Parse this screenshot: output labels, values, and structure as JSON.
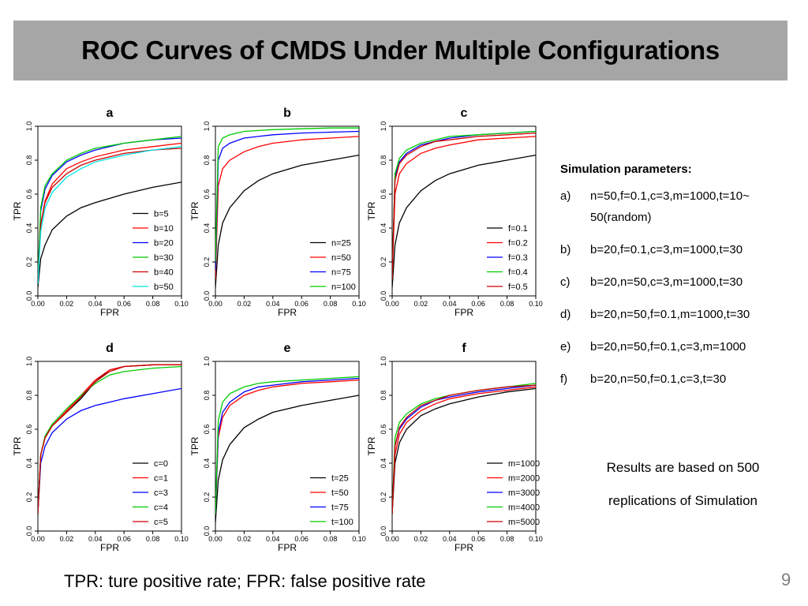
{
  "slide": {
    "title": "ROC Curves of CMDS Under Multiple Configurations",
    "footnote": "TPR: ture positive rate;  FPR: false positive rate",
    "page_number": "9"
  },
  "sidebar": {
    "heading": "Simulation parameters:",
    "params": [
      {
        "label": "a)",
        "text": "n=50,f=0.1,c=3,m=1000,t=10~ 50(random)"
      },
      {
        "label": "b)",
        "text": "b=20,f=0.1,c=3,m=1000,t=30"
      },
      {
        "label": "c)",
        "text": "b=20,n=50,c=3,m=1000,t=30"
      },
      {
        "label": "d)",
        "text": "b=20,n=50,f=0.1,m=1000,t=30"
      },
      {
        "label": "e)",
        "text": "b=20,n=50,f=0.1,c=3,m=1000"
      },
      {
        "label": "f)",
        "text": "b=20,n=50,f=0.1,c=3,t=30"
      }
    ],
    "note": "Results are based on 500 replications of Simulation"
  },
  "chart_data": [
    {
      "type": "line",
      "title": "a",
      "xlabel": "FPR",
      "ylabel": "TPR",
      "xlim": [
        0,
        0.1
      ],
      "ylim": [
        0,
        1
      ],
      "x_ticks": [
        "0.00",
        "0.02",
        "0.04",
        "0.06",
        "0.08",
        "0.10"
      ],
      "y_ticks": [
        "0.0",
        "0.2",
        "0.4",
        "0.6",
        "0.8",
        "1.0"
      ],
      "legend_position": "bottom-right",
      "series": [
        {
          "name": "b=5",
          "color": "#000000",
          "x": [
            0,
            0.002,
            0.005,
            0.01,
            0.02,
            0.03,
            0.04,
            0.06,
            0.08,
            0.1
          ],
          "y": [
            0.05,
            0.22,
            0.3,
            0.39,
            0.47,
            0.52,
            0.55,
            0.6,
            0.64,
            0.67
          ]
        },
        {
          "name": "b=10",
          "color": "#ff0000",
          "x": [
            0,
            0.002,
            0.005,
            0.01,
            0.02,
            0.03,
            0.04,
            0.06,
            0.08,
            0.1
          ],
          "y": [
            0.08,
            0.42,
            0.56,
            0.66,
            0.75,
            0.79,
            0.82,
            0.86,
            0.88,
            0.9
          ]
        },
        {
          "name": "b=20",
          "color": "#0000ff",
          "x": [
            0,
            0.002,
            0.005,
            0.01,
            0.02,
            0.03,
            0.04,
            0.06,
            0.08,
            0.1
          ],
          "y": [
            0.1,
            0.5,
            0.63,
            0.71,
            0.79,
            0.83,
            0.86,
            0.9,
            0.92,
            0.93
          ]
        },
        {
          "name": "b=30",
          "color": "#00cc00",
          "x": [
            0,
            0.002,
            0.005,
            0.01,
            0.02,
            0.03,
            0.04,
            0.06,
            0.08,
            0.1
          ],
          "y": [
            0.1,
            0.52,
            0.65,
            0.72,
            0.8,
            0.84,
            0.87,
            0.9,
            0.92,
            0.94
          ]
        },
        {
          "name": "b=40",
          "color": "#cc0000",
          "x": [
            0,
            0.002,
            0.005,
            0.01,
            0.02,
            0.03,
            0.04,
            0.06,
            0.08,
            0.1
          ],
          "y": [
            0.08,
            0.42,
            0.55,
            0.64,
            0.72,
            0.77,
            0.8,
            0.84,
            0.86,
            0.87
          ]
        },
        {
          "name": "b=50",
          "color": "#00e5e5",
          "x": [
            0,
            0.002,
            0.005,
            0.01,
            0.02,
            0.03,
            0.04,
            0.06,
            0.08,
            0.1
          ],
          "y": [
            0.07,
            0.38,
            0.52,
            0.61,
            0.7,
            0.75,
            0.79,
            0.83,
            0.86,
            0.88
          ]
        }
      ]
    },
    {
      "type": "line",
      "title": "b",
      "xlabel": "FPR",
      "ylabel": "TPR",
      "xlim": [
        0,
        0.1
      ],
      "ylim": [
        0,
        1
      ],
      "x_ticks": [
        "0.00",
        "0.02",
        "0.04",
        "0.06",
        "0.08",
        "0.10"
      ],
      "y_ticks": [
        "0.0",
        "0.2",
        "0.4",
        "0.6",
        "0.8",
        "1.0"
      ],
      "legend_position": "bottom-right",
      "series": [
        {
          "name": "n=25",
          "color": "#000000",
          "x": [
            0,
            0.002,
            0.005,
            0.01,
            0.02,
            0.03,
            0.04,
            0.06,
            0.08,
            0.1
          ],
          "y": [
            0.05,
            0.3,
            0.43,
            0.52,
            0.62,
            0.68,
            0.72,
            0.77,
            0.8,
            0.83
          ]
        },
        {
          "name": "n=50",
          "color": "#ff0000",
          "x": [
            0,
            0.002,
            0.005,
            0.01,
            0.02,
            0.03,
            0.04,
            0.06,
            0.08,
            0.1
          ],
          "y": [
            0.1,
            0.65,
            0.75,
            0.8,
            0.85,
            0.88,
            0.9,
            0.92,
            0.93,
            0.94
          ]
        },
        {
          "name": "n=75",
          "color": "#0000ff",
          "x": [
            0,
            0.002,
            0.005,
            0.01,
            0.02,
            0.03,
            0.04,
            0.06,
            0.08,
            0.1
          ],
          "y": [
            0.15,
            0.8,
            0.87,
            0.9,
            0.93,
            0.94,
            0.95,
            0.96,
            0.965,
            0.97
          ]
        },
        {
          "name": "n=100",
          "color": "#00cc00",
          "x": [
            0,
            0.002,
            0.005,
            0.01,
            0.02,
            0.03,
            0.04,
            0.06,
            0.08,
            0.1
          ],
          "y": [
            0.2,
            0.88,
            0.93,
            0.95,
            0.97,
            0.975,
            0.98,
            0.985,
            0.99,
            0.99
          ]
        }
      ]
    },
    {
      "type": "line",
      "title": "c",
      "xlabel": "FPR",
      "ylabel": "TPR",
      "xlim": [
        0,
        0.1
      ],
      "ylim": [
        0,
        1
      ],
      "x_ticks": [
        "0.00",
        "0.02",
        "0.04",
        "0.06",
        "0.08",
        "0.10"
      ],
      "y_ticks": [
        "0.0",
        "0.2",
        "0.4",
        "0.6",
        "0.8",
        "1.0"
      ],
      "legend_position": "bottom-right",
      "series": [
        {
          "name": "f=0.1",
          "color": "#000000",
          "x": [
            0,
            0.002,
            0.005,
            0.01,
            0.02,
            0.03,
            0.04,
            0.06,
            0.08,
            0.1
          ],
          "y": [
            0.05,
            0.3,
            0.43,
            0.52,
            0.62,
            0.68,
            0.72,
            0.77,
            0.8,
            0.83
          ]
        },
        {
          "name": "f=0.2",
          "color": "#ff0000",
          "x": [
            0,
            0.002,
            0.005,
            0.01,
            0.02,
            0.03,
            0.04,
            0.06,
            0.08,
            0.1
          ],
          "y": [
            0.1,
            0.6,
            0.72,
            0.78,
            0.84,
            0.87,
            0.89,
            0.92,
            0.93,
            0.94
          ]
        },
        {
          "name": "f=0.3",
          "color": "#0000ff",
          "x": [
            0,
            0.002,
            0.005,
            0.01,
            0.02,
            0.03,
            0.04,
            0.06,
            0.08,
            0.1
          ],
          "y": [
            0.12,
            0.7,
            0.79,
            0.84,
            0.89,
            0.91,
            0.93,
            0.95,
            0.96,
            0.97
          ]
        },
        {
          "name": "f=0.4",
          "color": "#00cc00",
          "x": [
            0,
            0.002,
            0.005,
            0.01,
            0.02,
            0.03,
            0.04,
            0.06,
            0.08,
            0.1
          ],
          "y": [
            0.12,
            0.72,
            0.81,
            0.86,
            0.9,
            0.92,
            0.94,
            0.95,
            0.96,
            0.97
          ]
        },
        {
          "name": "f=0.5",
          "color": "#cc0000",
          "x": [
            0,
            0.002,
            0.005,
            0.01,
            0.02,
            0.03,
            0.04,
            0.06,
            0.08,
            0.1
          ],
          "y": [
            0.12,
            0.68,
            0.78,
            0.83,
            0.88,
            0.91,
            0.92,
            0.94,
            0.95,
            0.96
          ]
        }
      ]
    },
    {
      "type": "line",
      "title": "d",
      "xlabel": "FPR",
      "ylabel": "TPR",
      "xlim": [
        0,
        0.1
      ],
      "ylim": [
        0,
        1
      ],
      "x_ticks": [
        "0.00",
        "0.02",
        "0.04",
        "0.06",
        "0.08",
        "0.10"
      ],
      "y_ticks": [
        "0.0",
        "0.2",
        "0.4",
        "0.6",
        "0.8",
        "1.0"
      ],
      "legend_position": "bottom-right",
      "series": [
        {
          "name": "c=0",
          "color": "#000000",
          "x": [
            0,
            0.002,
            0.005,
            0.01,
            0.02,
            0.03,
            0.04,
            0.05,
            0.06,
            0.08,
            0.1
          ],
          "y": [
            0.1,
            0.45,
            0.55,
            0.62,
            0.7,
            0.78,
            0.88,
            0.95,
            0.97,
            0.98,
            0.98
          ]
        },
        {
          "name": "c=1",
          "color": "#ff0000",
          "x": [
            0,
            0.002,
            0.005,
            0.01,
            0.02,
            0.03,
            0.04,
            0.05,
            0.06,
            0.08,
            0.1
          ],
          "y": [
            0.1,
            0.45,
            0.55,
            0.62,
            0.71,
            0.8,
            0.89,
            0.95,
            0.97,
            0.98,
            0.98
          ]
        },
        {
          "name": "c=3",
          "color": "#0000ff",
          "x": [
            0,
            0.002,
            0.005,
            0.01,
            0.02,
            0.03,
            0.04,
            0.05,
            0.06,
            0.08,
            0.1
          ],
          "y": [
            0.1,
            0.4,
            0.5,
            0.58,
            0.66,
            0.71,
            0.74,
            0.76,
            0.78,
            0.81,
            0.84
          ]
        },
        {
          "name": "c=4",
          "color": "#00cc00",
          "x": [
            0,
            0.002,
            0.005,
            0.01,
            0.02,
            0.03,
            0.04,
            0.05,
            0.06,
            0.08,
            0.1
          ],
          "y": [
            0.1,
            0.45,
            0.56,
            0.63,
            0.72,
            0.8,
            0.87,
            0.92,
            0.94,
            0.96,
            0.97
          ]
        },
        {
          "name": "c=5",
          "color": "#cc0000",
          "x": [
            0,
            0.002,
            0.005,
            0.01,
            0.02,
            0.03,
            0.04,
            0.05,
            0.06,
            0.08,
            0.1
          ],
          "y": [
            0.1,
            0.45,
            0.55,
            0.62,
            0.7,
            0.79,
            0.88,
            0.94,
            0.97,
            0.98,
            0.98
          ]
        }
      ]
    },
    {
      "type": "line",
      "title": "e",
      "xlabel": "FPR",
      "ylabel": "TPR",
      "xlim": [
        0,
        0.1
      ],
      "ylim": [
        0,
        1
      ],
      "x_ticks": [
        "0.00",
        "0.02",
        "0.04",
        "0.06",
        "0.08",
        "0.10"
      ],
      "y_ticks": [
        "0.0",
        "0.2",
        "0.4",
        "0.6",
        "0.8",
        "1.0"
      ],
      "legend_position": "bottom-right",
      "series": [
        {
          "name": "t=25",
          "color": "#000000",
          "x": [
            0,
            0.002,
            0.005,
            0.01,
            0.02,
            0.03,
            0.04,
            0.06,
            0.08,
            0.1
          ],
          "y": [
            0.05,
            0.3,
            0.42,
            0.51,
            0.61,
            0.66,
            0.7,
            0.74,
            0.77,
            0.8
          ]
        },
        {
          "name": "t=50",
          "color": "#ff0000",
          "x": [
            0,
            0.002,
            0.005,
            0.01,
            0.02,
            0.03,
            0.04,
            0.06,
            0.08,
            0.1
          ],
          "y": [
            0.1,
            0.55,
            0.67,
            0.74,
            0.8,
            0.83,
            0.85,
            0.87,
            0.88,
            0.89
          ]
        },
        {
          "name": "t=75",
          "color": "#0000ff",
          "x": [
            0,
            0.002,
            0.005,
            0.01,
            0.02,
            0.03,
            0.04,
            0.06,
            0.08,
            0.1
          ],
          "y": [
            0.1,
            0.58,
            0.7,
            0.76,
            0.82,
            0.85,
            0.86,
            0.88,
            0.89,
            0.9
          ]
        },
        {
          "name": "t=100",
          "color": "#00cc00",
          "x": [
            0,
            0.002,
            0.005,
            0.01,
            0.02,
            0.03,
            0.04,
            0.06,
            0.08,
            0.1
          ],
          "y": [
            0.1,
            0.65,
            0.76,
            0.81,
            0.85,
            0.87,
            0.88,
            0.89,
            0.9,
            0.91
          ]
        }
      ]
    },
    {
      "type": "line",
      "title": "f",
      "xlabel": "FPR",
      "ylabel": "TPR",
      "xlim": [
        0,
        0.1
      ],
      "ylim": [
        0,
        1
      ],
      "x_ticks": [
        "0.00",
        "0.02",
        "0.04",
        "0.06",
        "0.08",
        "0.10"
      ],
      "y_ticks": [
        "0.0",
        "0.2",
        "0.4",
        "0.6",
        "0.8",
        "1.0"
      ],
      "legend_position": "bottom-right",
      "series": [
        {
          "name": "m=1000",
          "color": "#000000",
          "x": [
            0,
            0.002,
            0.005,
            0.01,
            0.02,
            0.03,
            0.04,
            0.06,
            0.08,
            0.1
          ],
          "y": [
            0.1,
            0.4,
            0.52,
            0.6,
            0.68,
            0.72,
            0.75,
            0.79,
            0.82,
            0.84
          ]
        },
        {
          "name": "m=2000",
          "color": "#ff0000",
          "x": [
            0,
            0.002,
            0.005,
            0.01,
            0.02,
            0.03,
            0.04,
            0.06,
            0.08,
            0.1
          ],
          "y": [
            0.1,
            0.45,
            0.57,
            0.64,
            0.71,
            0.75,
            0.78,
            0.81,
            0.83,
            0.85
          ]
        },
        {
          "name": "m=3000",
          "color": "#0000ff",
          "x": [
            0,
            0.002,
            0.005,
            0.01,
            0.02,
            0.03,
            0.04,
            0.06,
            0.08,
            0.1
          ],
          "y": [
            0.1,
            0.5,
            0.6,
            0.66,
            0.73,
            0.77,
            0.79,
            0.82,
            0.84,
            0.86
          ]
        },
        {
          "name": "m=4000",
          "color": "#00cc00",
          "x": [
            0,
            0.002,
            0.005,
            0.01,
            0.02,
            0.03,
            0.04,
            0.06,
            0.08,
            0.1
          ],
          "y": [
            0.1,
            0.55,
            0.64,
            0.69,
            0.75,
            0.78,
            0.8,
            0.83,
            0.85,
            0.87
          ]
        },
        {
          "name": "m=5000",
          "color": "#cc0000",
          "x": [
            0,
            0.002,
            0.005,
            0.01,
            0.02,
            0.03,
            0.04,
            0.06,
            0.08,
            0.1
          ],
          "y": [
            0.1,
            0.5,
            0.61,
            0.67,
            0.74,
            0.77,
            0.8,
            0.83,
            0.85,
            0.86
          ]
        }
      ]
    }
  ]
}
